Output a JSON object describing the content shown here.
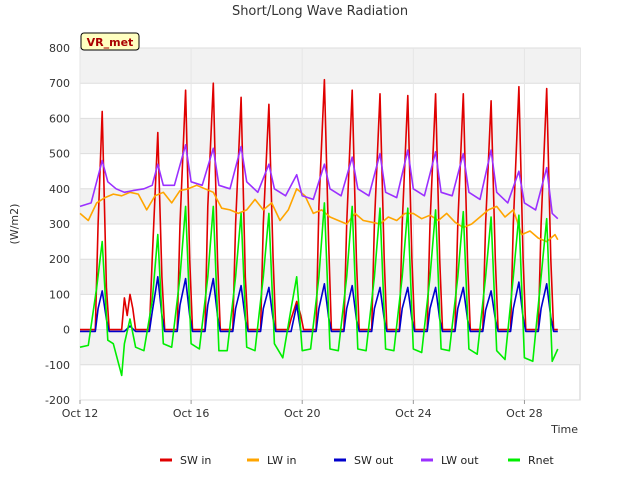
{
  "chart_data": {
    "type": "line",
    "title": "Short/Long Wave Radiation",
    "xlabel": "Time",
    "ylabel": "(W/m2)",
    "station_tag": "VR_met",
    "ylim": [
      -200,
      800
    ],
    "yticks": [
      -200,
      -100,
      0,
      100,
      200,
      300,
      400,
      500,
      600,
      700,
      800
    ],
    "xlim": [
      0,
      18
    ],
    "xticks": [
      {
        "x": 0,
        "label": "Oct 12"
      },
      {
        "x": 4,
        "label": "Oct 16"
      },
      {
        "x": 8,
        "label": "Oct 20"
      },
      {
        "x": 12,
        "label": "Oct 24"
      },
      {
        "x": 16,
        "label": "Oct 28"
      }
    ],
    "grid": true,
    "legend_position": "bottom",
    "day_peaks": {
      "x": [
        0.8,
        1.8,
        2.8,
        3.8,
        4.8,
        5.8,
        6.8,
        7.8,
        8.8,
        9.8,
        10.8,
        11.8,
        12.8,
        13.8,
        14.8,
        15.8,
        16.8
      ],
      "sw_in": [
        620,
        100,
        560,
        680,
        700,
        660,
        640,
        80,
        710,
        680,
        670,
        665,
        670,
        670,
        650,
        690,
        685
      ],
      "sw_out": [
        110,
        10,
        150,
        145,
        145,
        125,
        120,
        70,
        130,
        125,
        120,
        120,
        120,
        120,
        110,
        135,
        130
      ],
      "rnet": [
        250,
        30,
        270,
        350,
        350,
        330,
        330,
        150,
        360,
        350,
        345,
        345,
        340,
        335,
        320,
        325,
        315
      ]
    },
    "series": [
      {
        "name": "SW in",
        "color": "#e00000",
        "x": [
          0.0,
          0.55,
          0.65,
          0.8,
          0.95,
          1.05,
          1.5,
          1.6,
          1.7,
          1.8,
          1.9,
          2.0,
          2.1,
          2.5,
          2.6,
          2.8,
          2.95,
          3.05,
          3.5,
          3.6,
          3.8,
          3.95,
          4.05,
          4.5,
          4.6,
          4.8,
          4.95,
          5.05,
          5.5,
          5.6,
          5.8,
          5.95,
          6.05,
          6.5,
          6.6,
          6.8,
          6.95,
          7.05,
          7.5,
          7.6,
          7.8,
          7.95,
          8.05,
          8.5,
          8.6,
          8.8,
          8.95,
          9.05,
          9.5,
          9.6,
          9.8,
          9.95,
          10.05,
          10.5,
          10.6,
          10.8,
          10.95,
          11.05,
          11.5,
          11.6,
          11.8,
          11.95,
          12.05,
          12.5,
          12.6,
          12.8,
          12.95,
          13.05,
          13.5,
          13.6,
          13.8,
          13.95,
          14.05,
          14.5,
          14.6,
          14.8,
          14.95,
          15.05,
          15.5,
          15.6,
          15.8,
          15.95,
          16.05,
          16.5,
          16.6,
          16.8,
          16.95,
          17.05,
          17.2
        ],
        "y": [
          0,
          0,
          300,
          620,
          120,
          0,
          0,
          90,
          40,
          100,
          60,
          0,
          0,
          0,
          200,
          560,
          150,
          0,
          0,
          300,
          680,
          200,
          0,
          0,
          350,
          700,
          200,
          0,
          0,
          300,
          660,
          150,
          0,
          0,
          300,
          640,
          200,
          0,
          0,
          30,
          80,
          40,
          0,
          0,
          350,
          710,
          250,
          0,
          0,
          300,
          680,
          200,
          0,
          0,
          300,
          670,
          200,
          0,
          0,
          300,
          665,
          200,
          0,
          0,
          300,
          670,
          200,
          0,
          0,
          300,
          670,
          200,
          0,
          0,
          300,
          650,
          200,
          0,
          0,
          300,
          690,
          200,
          0,
          0,
          300,
          685,
          200,
          0,
          0
        ]
      },
      {
        "name": "LW in",
        "color": "#ffa500",
        "x": [
          0.0,
          0.3,
          0.6,
          0.9,
          1.2,
          1.5,
          1.8,
          2.1,
          2.4,
          2.7,
          3.0,
          3.3,
          3.6,
          3.9,
          4.2,
          4.5,
          4.8,
          5.1,
          5.4,
          5.7,
          6.0,
          6.3,
          6.6,
          6.9,
          7.2,
          7.5,
          7.8,
          8.1,
          8.4,
          8.7,
          9.0,
          9.3,
          9.6,
          9.9,
          10.2,
          10.5,
          10.8,
          11.1,
          11.4,
          11.7,
          12.0,
          12.3,
          12.6,
          12.9,
          13.2,
          13.5,
          13.8,
          14.1,
          14.4,
          14.7,
          15.0,
          15.3,
          15.6,
          15.9,
          16.2,
          16.5,
          16.8,
          17.1,
          17.2
        ],
        "y": [
          330,
          310,
          360,
          375,
          385,
          380,
          390,
          385,
          340,
          380,
          390,
          360,
          395,
          400,
          410,
          400,
          390,
          345,
          340,
          330,
          340,
          370,
          340,
          360,
          310,
          340,
          400,
          380,
          330,
          340,
          320,
          310,
          300,
          330,
          310,
          305,
          300,
          320,
          310,
          330,
          330,
          315,
          325,
          310,
          330,
          305,
          290,
          300,
          320,
          340,
          350,
          320,
          340,
          270,
          280,
          260,
          250,
          270,
          255
        ]
      },
      {
        "name": "SW out",
        "color": "#0000cc",
        "x": [
          0.0,
          0.55,
          0.65,
          0.8,
          0.95,
          1.05,
          1.6,
          1.8,
          2.0,
          2.5,
          2.6,
          2.8,
          2.95,
          3.05,
          3.5,
          3.6,
          3.8,
          3.95,
          4.05,
          4.5,
          4.6,
          4.8,
          4.95,
          5.05,
          5.5,
          5.6,
          5.8,
          5.95,
          6.05,
          6.5,
          6.6,
          6.8,
          6.95,
          7.05,
          7.6,
          7.8,
          7.95,
          8.5,
          8.6,
          8.8,
          8.95,
          9.05,
          9.5,
          9.6,
          9.8,
          9.95,
          10.05,
          10.5,
          10.6,
          10.8,
          10.95,
          11.05,
          11.5,
          11.6,
          11.8,
          11.95,
          12.05,
          12.5,
          12.6,
          12.8,
          12.95,
          13.05,
          13.5,
          13.6,
          13.8,
          13.95,
          14.05,
          14.5,
          14.6,
          14.8,
          14.95,
          15.05,
          15.5,
          15.6,
          15.8,
          15.95,
          16.05,
          16.5,
          16.6,
          16.8,
          16.95,
          17.05,
          17.2
        ],
        "y": [
          -5,
          -5,
          60,
          110,
          30,
          -5,
          -5,
          10,
          -5,
          -5,
          50,
          150,
          40,
          -5,
          -5,
          70,
          145,
          40,
          -5,
          -5,
          70,
          145,
          40,
          -5,
          -5,
          60,
          125,
          30,
          -5,
          -5,
          60,
          120,
          30,
          -5,
          -5,
          70,
          -5,
          -5,
          60,
          130,
          35,
          -5,
          -5,
          60,
          125,
          30,
          -5,
          -5,
          60,
          120,
          30,
          -5,
          -5,
          60,
          120,
          30,
          -5,
          -5,
          60,
          120,
          30,
          -5,
          -5,
          60,
          120,
          30,
          -5,
          -5,
          55,
          110,
          30,
          -5,
          -5,
          60,
          135,
          35,
          -5,
          -5,
          60,
          130,
          35,
          -5,
          -5
        ]
      },
      {
        "name": "LW out",
        "color": "#9b30ff",
        "x": [
          0.0,
          0.4,
          0.8,
          1.0,
          1.3,
          1.6,
          1.9,
          2.3,
          2.6,
          2.8,
          3.0,
          3.4,
          3.8,
          4.0,
          4.4,
          4.8,
          5.0,
          5.4,
          5.8,
          6.0,
          6.4,
          6.8,
          7.0,
          7.4,
          7.8,
          8.0,
          8.4,
          8.8,
          9.0,
          9.4,
          9.8,
          10.0,
          10.4,
          10.8,
          11.0,
          11.4,
          11.8,
          12.0,
          12.4,
          12.8,
          13.0,
          13.4,
          13.8,
          14.0,
          14.4,
          14.8,
          15.0,
          15.4,
          15.8,
          16.0,
          16.4,
          16.8,
          17.0,
          17.2
        ],
        "y": [
          350,
          360,
          480,
          420,
          400,
          390,
          395,
          400,
          410,
          470,
          410,
          410,
          525,
          420,
          410,
          515,
          410,
          400,
          520,
          420,
          390,
          470,
          400,
          380,
          440,
          380,
          370,
          470,
          400,
          380,
          490,
          400,
          380,
          500,
          390,
          375,
          510,
          400,
          380,
          505,
          390,
          380,
          500,
          390,
          370,
          510,
          390,
          360,
          450,
          360,
          340,
          460,
          330,
          315
        ]
      },
      {
        "name": "Rnet",
        "color": "#00ee00",
        "x": [
          0.0,
          0.3,
          0.6,
          0.8,
          1.0,
          1.2,
          1.5,
          1.6,
          1.8,
          2.0,
          2.3,
          2.6,
          2.8,
          3.0,
          3.3,
          3.6,
          3.8,
          4.0,
          4.3,
          4.6,
          4.8,
          5.0,
          5.3,
          5.6,
          5.8,
          6.0,
          6.3,
          6.6,
          6.8,
          7.0,
          7.3,
          7.6,
          7.8,
          8.0,
          8.3,
          8.6,
          8.8,
          9.0,
          9.3,
          9.6,
          9.8,
          10.0,
          10.3,
          10.6,
          10.8,
          11.0,
          11.3,
          11.6,
          11.8,
          12.0,
          12.3,
          12.6,
          12.8,
          13.0,
          13.3,
          13.6,
          13.8,
          14.0,
          14.3,
          14.6,
          14.8,
          15.0,
          15.3,
          15.6,
          15.8,
          16.0,
          16.3,
          16.6,
          16.8,
          17.0,
          17.2
        ],
        "y": [
          -50,
          -45,
          120,
          250,
          -30,
          -40,
          -130,
          -40,
          30,
          -50,
          -60,
          80,
          270,
          -40,
          -50,
          150,
          350,
          -40,
          -55,
          150,
          350,
          -60,
          -60,
          150,
          330,
          -50,
          -60,
          150,
          330,
          -40,
          -80,
          60,
          150,
          -60,
          -55,
          150,
          360,
          -55,
          -60,
          150,
          350,
          -55,
          -60,
          150,
          345,
          -55,
          -60,
          150,
          345,
          -55,
          -65,
          150,
          340,
          -55,
          -60,
          150,
          335,
          -55,
          -70,
          150,
          320,
          -60,
          -85,
          150,
          325,
          -80,
          -90,
          150,
          315,
          -90,
          -55
        ]
      }
    ]
  }
}
